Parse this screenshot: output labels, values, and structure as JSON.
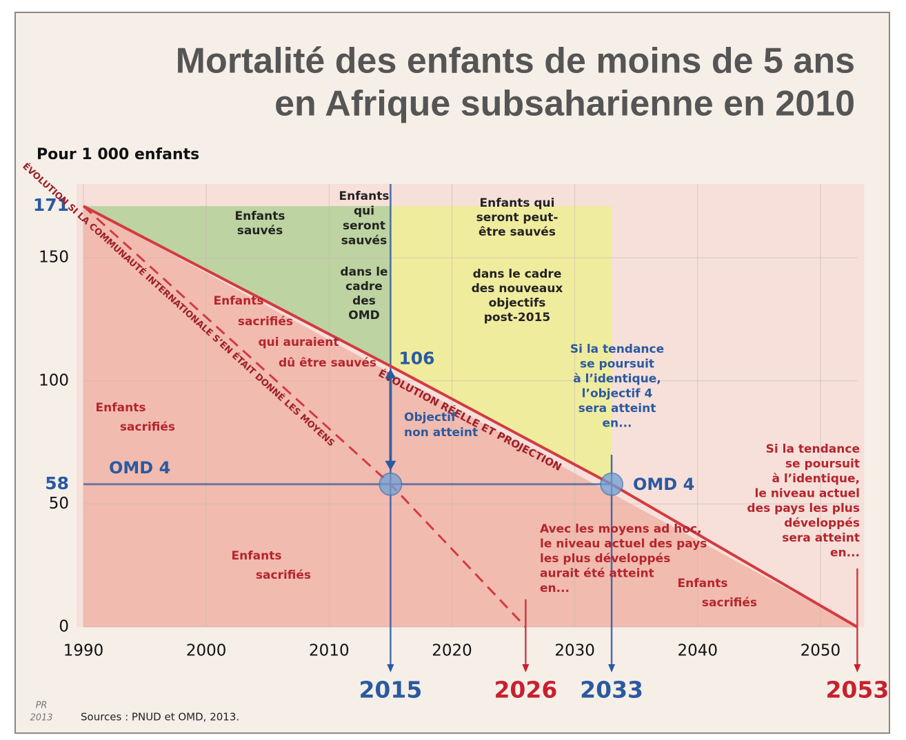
{
  "chart_data": {
    "type": "line",
    "title": [
      "Mortalité des enfants de moins de 5 ans",
      "en Afrique subsaharienne en 2010"
    ],
    "y_label": "Pour 1 000 enfants",
    "source": "Sources : PNUD et OMD, 2013.",
    "signature": [
      "PR",
      "2013"
    ],
    "xlim": [
      1988,
      2055
    ],
    "ylim": [
      0,
      180
    ],
    "xticks": [
      1990,
      2000,
      2010,
      2020,
      2030,
      2040,
      2050
    ],
    "yticks": [
      0,
      50,
      100,
      150
    ],
    "grid": true,
    "highlight_yticks": [
      171,
      58
    ],
    "highlight_color": "#2a5aa0",
    "series": [
      {
        "name": "ÉVOLUTION RÉELLE ET PROJECTION",
        "color": "#d33a40",
        "dashed": false,
        "x": [
          1990,
          2015,
          2033,
          2053
        ],
        "values": [
          171,
          106,
          58,
          0
        ]
      },
      {
        "name": "ÉVOLUTION SI LA COMMUNAUTÉ INTERNATIONALE S’EN ÉTAIT DONNÉ LES MOYENS",
        "color": "#d33a40",
        "dashed": true,
        "x": [
          1990,
          2015,
          2026
        ],
        "values": [
          171,
          58,
          0
        ]
      }
    ],
    "target": {
      "label": "OMD 4",
      "value": 58,
      "color": "#2a5aa0"
    },
    "gap": {
      "from": 106,
      "to": 58,
      "x": 2015,
      "label": [
        "Objectif",
        "non atteint"
      ],
      "color": "#2a5aa0"
    },
    "key_years": [
      {
        "value": 2015,
        "color": "#2a5aa0"
      },
      {
        "value": 2026,
        "color": "#c8202e"
      },
      {
        "value": 2033,
        "color": "#2a5aa0"
      },
      {
        "value": 2053,
        "color": "#c8202e"
      }
    ],
    "annotations": [
      {
        "lines": [
          "Enfants",
          "sauvés"
        ],
        "color": "#222222"
      },
      {
        "lines": [
          "Enfants",
          "qui",
          "seront",
          "sauvés"
        ],
        "color": "#222222"
      },
      {
        "lines": [
          "dans le",
          "cadre",
          "des",
          "OMD"
        ],
        "color": "#222222"
      },
      {
        "lines": [
          "Enfants qui",
          "seront peut-",
          "être sauvés"
        ],
        "color": "#222222"
      },
      {
        "lines": [
          "dans le cadre",
          "des nouveaux",
          "objectifs",
          "post-2015"
        ],
        "color": "#222222"
      },
      {
        "lines": [
          "Enfants",
          "sacrifiés",
          "qui auraient",
          "dû être sauvés"
        ],
        "color": "#b4252e"
      },
      {
        "lines": [
          "Enfants",
          "sacrifiés"
        ],
        "color": "#b4252e"
      },
      {
        "lines": [
          "Enfants",
          "sacrifiés"
        ],
        "color": "#b4252e"
      },
      {
        "lines": [
          "Enfants",
          "sacrifiés"
        ],
        "color": "#b4252e"
      },
      {
        "lines": [
          "Si la tendance",
          "se poursuit",
          "à l’identique,",
          "l’objectif 4",
          "sera atteint",
          "en..."
        ],
        "color": "#2a5aa0"
      },
      {
        "lines": [
          "Si la tendance",
          "se poursuit",
          "à l’identique,",
          "le niveau actuel",
          "des pays les plus",
          "développés",
          "sera atteint",
          "en..."
        ],
        "color": "#b4252e"
      },
      {
        "lines": [
          "Avec les moyens ad hoc,",
          "le niveau actuel des pays",
          "les plus développés",
          "aurait été atteint",
          "en..."
        ],
        "color": "#b4252e"
      }
    ]
  }
}
